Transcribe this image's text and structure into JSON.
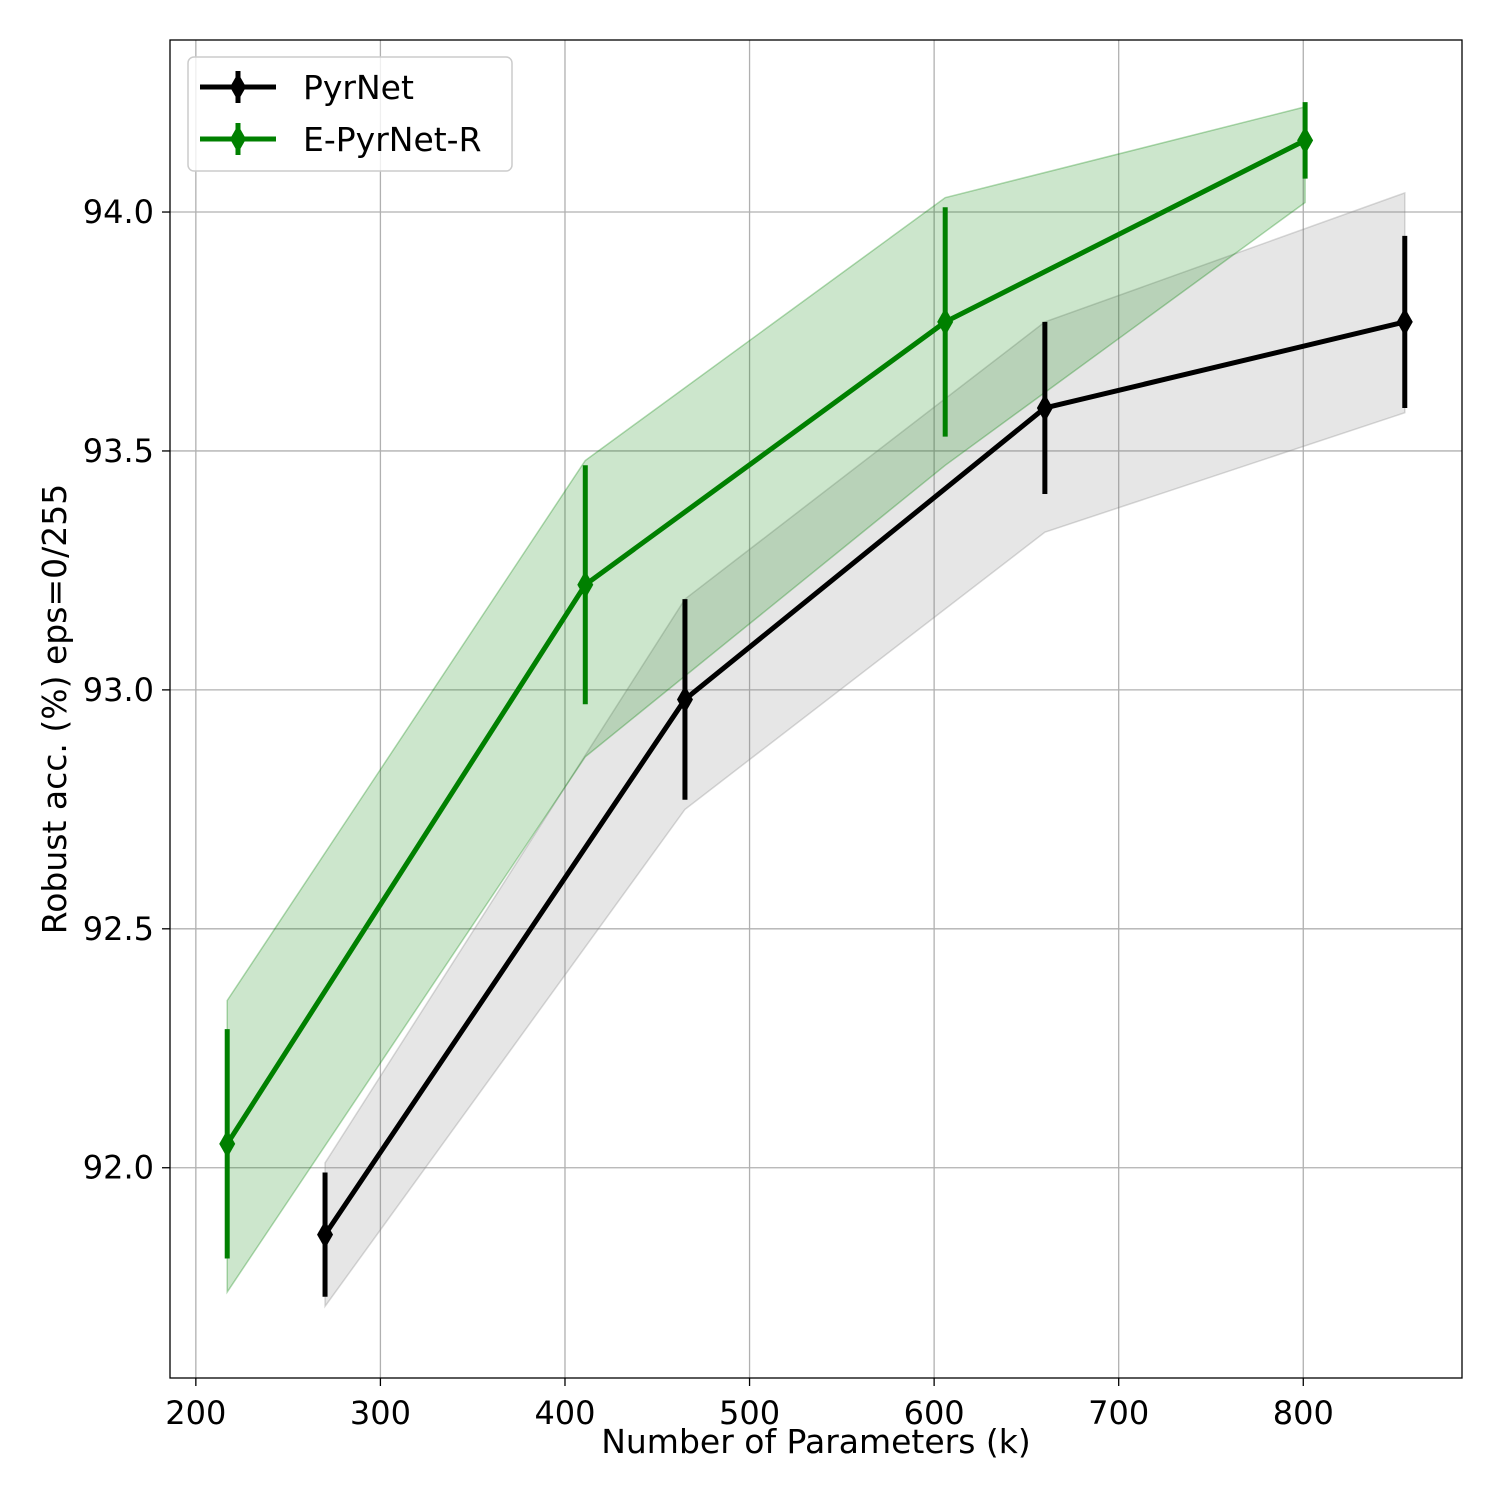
{
  "chart_data": {
    "type": "line",
    "title": "",
    "xlabel": "Number of Parameters (k)",
    "ylabel": "Robust acc. (%) eps=0/255",
    "xlim": [
      186,
      886
    ],
    "ylim": [
      91.56,
      94.36
    ],
    "xticks": [
      200,
      300,
      400,
      500,
      600,
      700,
      800
    ],
    "yticks": [
      92.0,
      92.5,
      93.0,
      93.5,
      94.0
    ],
    "xtick_labels": [
      "200",
      "300",
      "400",
      "500",
      "600",
      "700",
      "800"
    ],
    "ytick_labels": [
      "92.0",
      "92.5",
      "93.0",
      "93.5",
      "94.0"
    ],
    "grid": true,
    "legend_position": "top-left",
    "series": [
      {
        "name": "PyrNet",
        "color": "#000000",
        "band_color": "#808080",
        "marker": "diamond",
        "x": [
          270,
          465,
          660,
          855
        ],
        "y": [
          91.86,
          92.98,
          93.59,
          93.77
        ],
        "err": [
          0.13,
          0.21,
          0.18,
          0.18
        ],
        "band_low": [
          91.71,
          92.75,
          93.33,
          93.58
        ],
        "band_high": [
          92.01,
          93.19,
          93.77,
          94.04
        ]
      },
      {
        "name": "E-PyrNet-R",
        "color": "#008000",
        "band_color": "#008000",
        "marker": "diamond",
        "x": [
          217,
          411,
          606,
          801
        ],
        "y": [
          92.05,
          93.22,
          93.77,
          94.15
        ],
        "err": [
          0.24,
          0.25,
          0.24,
          0.08
        ],
        "band_low": [
          91.74,
          92.86,
          93.47,
          94.02
        ],
        "band_high": [
          92.35,
          93.48,
          94.03,
          94.22
        ]
      }
    ]
  }
}
